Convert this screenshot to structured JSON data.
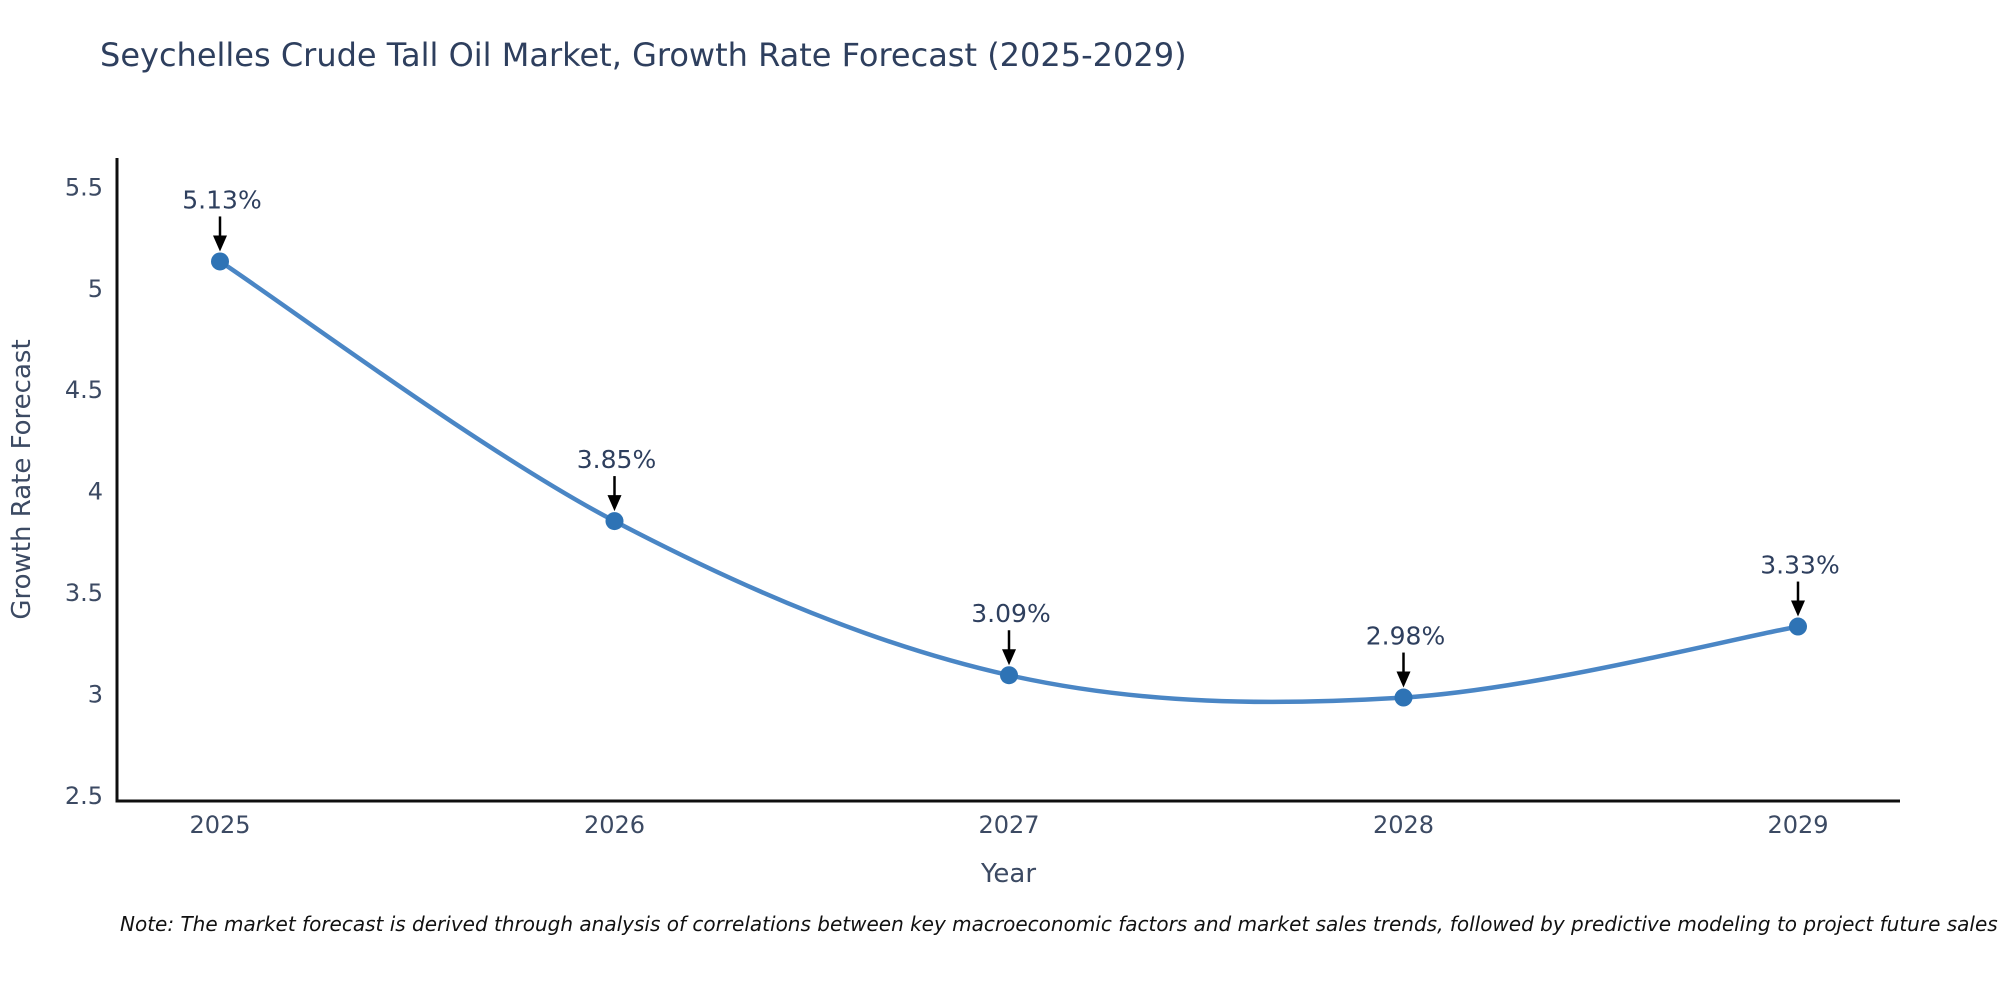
{
  "title": "Seychelles Crude Tall Oil Market, Growth Rate Forecast (2025-2029)",
  "note": "Note: The market forecast is derived through analysis of correlations between key macroeconomic factors and market sales trends, followed by predictive modeling to project future sales",
  "chart_data": {
    "type": "line",
    "x": [
      2025,
      2026,
      2027,
      2028,
      2029
    ],
    "values": [
      5.13,
      3.85,
      3.09,
      2.98,
      3.33
    ],
    "point_labels": [
      "5.13%",
      "3.85%",
      "3.09%",
      "2.98%",
      "3.33%"
    ],
    "xlabel": "Year",
    "ylabel": "Growth Rate Forecast",
    "xticks": [
      "2025",
      "2026",
      "2027",
      "2028",
      "2029"
    ],
    "yticks": [
      2.5,
      3,
      3.5,
      4,
      4.5,
      5,
      5.5
    ],
    "ytick_labels": [
      "2.5",
      "3",
      "3.5",
      "4",
      "4.5",
      "5",
      "5.5"
    ],
    "ylim": [
      2.47,
      5.64
    ],
    "grid": false,
    "legend": null,
    "line_shape": "spline",
    "colors": {
      "line": "#4a86c5",
      "marker": "#2e73b5",
      "axis": "#0f0f0f",
      "tick_label": "#3c4a63",
      "axis_title": "#3c4a63",
      "title": "#2e3f5e",
      "annotation_text": "#2e3f5e",
      "arrow": "#000000",
      "note_text": "#111111",
      "background": "#ffffff"
    }
  }
}
